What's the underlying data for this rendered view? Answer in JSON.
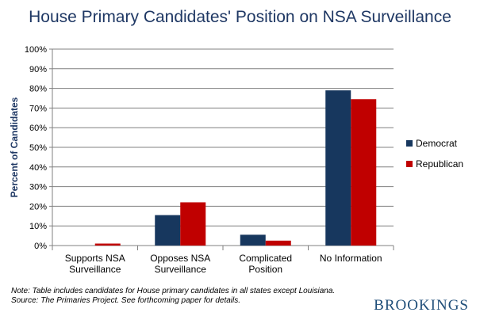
{
  "chart_data": {
    "type": "bar",
    "title": "House Primary Candidates' Position on NSA Surveillance",
    "ylabel": "Percent of Candidates",
    "xlabel": "",
    "ylim": [
      0,
      100
    ],
    "yticks": [
      0,
      10,
      20,
      30,
      40,
      50,
      60,
      70,
      80,
      90,
      100
    ],
    "ytick_labels": [
      "0%",
      "10%",
      "20%",
      "30%",
      "40%",
      "50%",
      "60%",
      "70%",
      "80%",
      "90%",
      "100%"
    ],
    "grid": true,
    "legend_position": "right",
    "categories": [
      [
        "Supports NSA",
        "Surveillance"
      ],
      [
        "Opposes NSA",
        "Surveillance"
      ],
      [
        "Complicated",
        "Position"
      ],
      [
        "No Information"
      ]
    ],
    "series": [
      {
        "name": "Democrat",
        "color": "#17375e",
        "values": [
          0,
          15.5,
          5.5,
          79
        ]
      },
      {
        "name": "Republican",
        "color": "#c00000",
        "values": [
          1,
          22,
          2.5,
          74.5
        ]
      }
    ]
  },
  "footer": {
    "note_line1": "Note: Table includes candidates for  House primary candidates in all states except Louisiana.",
    "note_line2": "Source: The Primaries Project.  See forthcoming paper for details.",
    "brand": "BROOKINGS"
  }
}
